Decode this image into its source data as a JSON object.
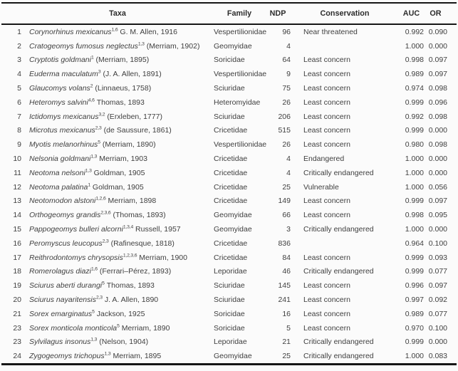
{
  "colors": {
    "text": "#3f3f3f",
    "header_text": "#2c2c2c",
    "border": "#161616",
    "background": "#fbfbfb"
  },
  "table": {
    "headers": {
      "taxa": "Taxa",
      "family": "Family",
      "ndp": "NDP",
      "conservation": "Conservation",
      "auc": "AUC",
      "or": "OR"
    },
    "rows": [
      {
        "num": "1",
        "species": "Corynorhinus mexicanus",
        "sup": "1,6",
        "author": "G. M. Allen, 1916",
        "family": "Vespertilionidae",
        "ndp": "96",
        "conservation": "Near threatened",
        "auc": "0.992",
        "or": "0.090"
      },
      {
        "num": "2",
        "species": "Cratogeomys fumosus neglectus",
        "sup": "1,3",
        "author": "(Merriam, 1902)",
        "family": "Geomyidae",
        "ndp": "4",
        "conservation": "",
        "auc": "1.000",
        "or": "0.000"
      },
      {
        "num": "3",
        "species": "Cryptotis goldmani",
        "sup": "1",
        "author": "(Merriam, 1895)",
        "family": "Soricidae",
        "ndp": "64",
        "conservation": "Least concern",
        "auc": "0.998",
        "or": "0.097"
      },
      {
        "num": "4",
        "species": "Euderma maculatum",
        "sup": "3",
        "author": "(J. A. Allen, 1891)",
        "family": "Vespertilionidae",
        "ndp": "9",
        "conservation": "Least concern",
        "auc": "0.989",
        "or": "0.097"
      },
      {
        "num": "5",
        "species": "Glaucomys volans",
        "sup": "2",
        "author": "(Linnaeus, 1758)",
        "family": "Sciuridae",
        "ndp": "75",
        "conservation": "Least concern",
        "auc": "0.974",
        "or": "0.098"
      },
      {
        "num": "6",
        "species": "Heteromys salvini",
        "sup": "4,6",
        "author": "Thomas, 1893",
        "family": "Heteromyidae",
        "ndp": "26",
        "conservation": "Least concern",
        "auc": "0.999",
        "or": "0.096"
      },
      {
        "num": "7",
        "species": "Ictidomys mexicanus",
        "sup": "3,2",
        "author": "(Erxleben, 1777)",
        "family": "Sciuridae",
        "ndp": "206",
        "conservation": "Least concern",
        "auc": "0.992",
        "or": "0.098"
      },
      {
        "num": "8",
        "species": "Microtus mexicanus",
        "sup": "2,3",
        "author": "(de Saussure, 1861)",
        "family": "Cricetidae",
        "ndp": "515",
        "conservation": "Least concern",
        "auc": "0.999",
        "or": "0.000"
      },
      {
        "num": "9",
        "species": "Myotis melanorhinus",
        "sup": "5",
        "author": "(Merriam, 1890)",
        "family": "Vespertilionidae",
        "ndp": "26",
        "conservation": "Least concern",
        "auc": "0.980",
        "or": "0.098"
      },
      {
        "num": "10",
        "species": "Nelsonia goldmani",
        "sup": "1,3",
        "author": "Merriam, 1903",
        "family": "Cricetidae",
        "ndp": "4",
        "conservation": "Endangered",
        "auc": "1.000",
        "or": "0.000"
      },
      {
        "num": "11",
        "species": "Neotoma nelsoni",
        "sup": "1,3",
        "author": "Goldman, 1905",
        "family": "Cricetidae",
        "ndp": "4",
        "conservation": "Critically endangered",
        "auc": "1.000",
        "or": "0.000"
      },
      {
        "num": "12",
        "species": "Neotoma palatina",
        "sup": "1",
        "author": "Goldman, 1905",
        "family": "Cricetidae",
        "ndp": "25",
        "conservation": "Vulnerable",
        "auc": "1.000",
        "or": "0.056"
      },
      {
        "num": "13",
        "species": "Neotomodon alstoni",
        "sup": "1,2,6",
        "author": "Merriam, 1898",
        "family": "Cricetidae",
        "ndp": "149",
        "conservation": "Least concern",
        "auc": "0.999",
        "or": "0.097"
      },
      {
        "num": "14",
        "species": "Orthogeomys grandis",
        "sup": "2,3,6",
        "author": "(Thomas, 1893)",
        "family": "Geomyidae",
        "ndp": "66",
        "conservation": "Least concern",
        "auc": "0.998",
        "or": "0.095"
      },
      {
        "num": "15",
        "species": "Pappogeomys bulleri alcorni",
        "sup": "1,3,4",
        "author": "Russell, 1957",
        "family": "Geomyidae",
        "ndp": "3",
        "conservation": "Critically endangered",
        "auc": "1.000",
        "or": "0.000"
      },
      {
        "num": "16",
        "species": "Peromyscus leucopus",
        "sup": "2,3",
        "author": "(Rafinesque, 1818)",
        "family": "Cricetidae",
        "ndp": "836",
        "conservation": "",
        "auc": "0.964",
        "or": "0.100"
      },
      {
        "num": "17",
        "species": "Reithrodontomys chrysopsis",
        "sup": "1,2,3,6",
        "author": "Merriam, 1900",
        "family": "Cricetidae",
        "ndp": "84",
        "conservation": "Least concern",
        "auc": "0.999",
        "or": "0.093"
      },
      {
        "num": "18",
        "species": "Romerolagus diazi",
        "sup": "1,6",
        "author": "(Ferrari–Pérez, 1893)",
        "family": "Leporidae",
        "ndp": "46",
        "conservation": "Critically endangered",
        "auc": "0.999",
        "or": "0.077"
      },
      {
        "num": "19",
        "species": "Sciurus aberti durangi",
        "sup": "5",
        "author": "Thomas, 1893",
        "family": "Sciuridae",
        "ndp": "145",
        "conservation": "Least concern",
        "auc": "0.996",
        "or": "0.097"
      },
      {
        "num": "20",
        "species": "Sciurus nayaritensis",
        "sup": "2,3",
        "author": "J. A. Allen, 1890",
        "family": "Sciuridae",
        "ndp": "241",
        "conservation": "Least concern",
        "auc": "0.997",
        "or": "0.092"
      },
      {
        "num": "21",
        "species": "Sorex emarginatus",
        "sup": "5",
        "author": "Jackson, 1925",
        "family": "Soricidae",
        "ndp": "16",
        "conservation": "Least concern",
        "auc": "0.989",
        "or": "0.077"
      },
      {
        "num": "23",
        "species": "Sorex monticola monticola",
        "sup": "5",
        "author": "Merriam, 1890",
        "family": "Soricidae",
        "ndp": "5",
        "conservation": "Least concern",
        "auc": "0.970",
        "or": "0.100"
      },
      {
        "num": "23",
        "species": "Sylvilagus insonus",
        "sup": "1,3",
        "author": "(Nelson, 1904)",
        "family": "Leporidae",
        "ndp": "21",
        "conservation": "Critically endangered",
        "auc": "0.999",
        "or": "0.000"
      },
      {
        "num": "24",
        "species": "Zygogeomys trichopus",
        "sup": "1,3",
        "author": "Merriam, 1895",
        "family": "Geomyidae",
        "ndp": "25",
        "conservation": "Critically endangered",
        "auc": "1.000",
        "or": "0.083"
      }
    ]
  }
}
